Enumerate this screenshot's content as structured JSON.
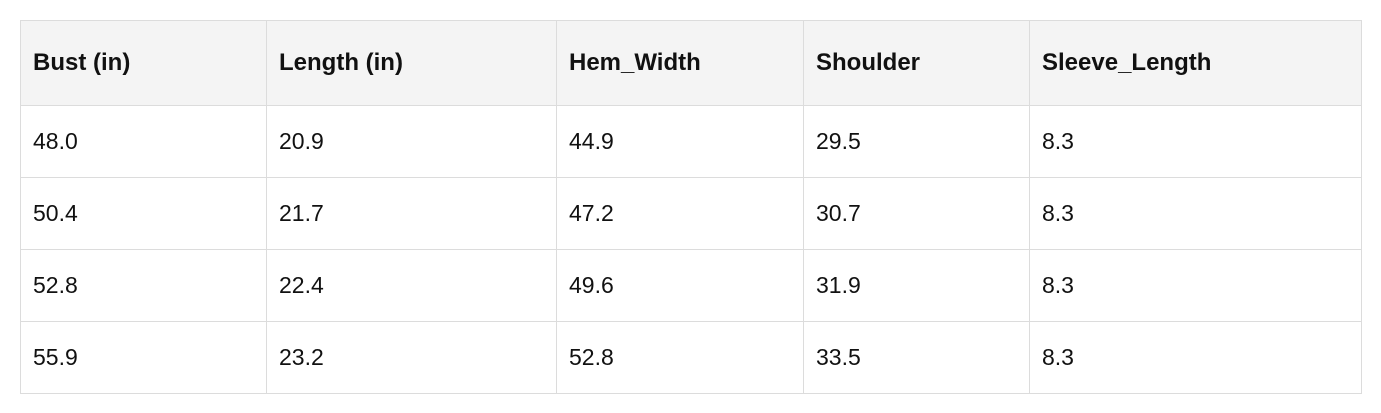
{
  "table": {
    "header": [
      "Bust (in)",
      "Length (in)",
      "Hem_Width",
      "Shoulder",
      "Sleeve_Length"
    ],
    "rows": [
      [
        "48.0",
        "20.9",
        "44.9",
        "29.5",
        "8.3"
      ],
      [
        "50.4",
        "21.7",
        "47.2",
        "30.7",
        "8.3"
      ],
      [
        "52.8",
        "22.4",
        "49.6",
        "31.9",
        "8.3"
      ],
      [
        "55.9",
        "23.2",
        "52.8",
        "33.5",
        "8.3"
      ]
    ]
  }
}
